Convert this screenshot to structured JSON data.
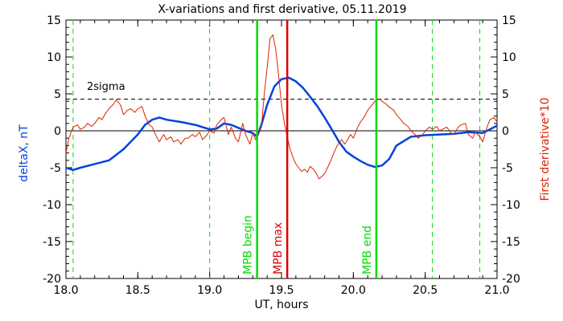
{
  "chart_data": {
    "type": "line",
    "title": "X-variations and first derivative, 05.11.2019",
    "xlabel": "UT, hours",
    "ylabel_left": "deltaX, nT",
    "ylabel_right": "First derivative*10",
    "xlim": [
      18.0,
      21.0
    ],
    "ylim": [
      -20,
      15
    ],
    "x_ticks": [
      "18.0",
      "18.5",
      "19.0",
      "19.5",
      "20.0",
      "20.5",
      "21.0"
    ],
    "y_ticks": [
      "15",
      "10",
      "5",
      "0",
      "-5",
      "-10",
      "-15",
      "-20"
    ],
    "sigma": {
      "label": "2sigma",
      "value": 4.3
    },
    "markers": [
      {
        "label": "MPB begin",
        "x": 19.33,
        "color": "#00dd00"
      },
      {
        "label": "MPB max",
        "x": 19.54,
        "color": "#dd0000"
      },
      {
        "label": "MPB end",
        "x": 20.16,
        "color": "#00dd00"
      }
    ],
    "dashed_lines_x": [
      18.05,
      19.0,
      20.55,
      20.88
    ],
    "series": [
      {
        "name": "deltaX, nT",
        "color": "#0044dd",
        "x": [
          18.0,
          18.05,
          18.1,
          18.2,
          18.3,
          18.4,
          18.5,
          18.55,
          18.6,
          18.65,
          18.7,
          18.8,
          18.9,
          19.0,
          19.05,
          19.1,
          19.15,
          19.2,
          19.25,
          19.3,
          19.33,
          19.36,
          19.4,
          19.45,
          19.5,
          19.55,
          19.6,
          19.65,
          19.7,
          19.75,
          19.8,
          19.85,
          19.9,
          19.95,
          20.0,
          20.05,
          20.1,
          20.15,
          20.2,
          20.25,
          20.3,
          20.4,
          20.5,
          20.6,
          20.7,
          20.8,
          20.9,
          21.0
        ],
        "values": [
          -5.0,
          -5.3,
          -5.0,
          -4.5,
          -4.0,
          -2.5,
          -0.5,
          0.8,
          1.5,
          1.8,
          1.5,
          1.2,
          0.8,
          0.2,
          0.3,
          1.0,
          0.8,
          0.4,
          0.0,
          -0.3,
          -0.8,
          0.8,
          3.5,
          6.0,
          7.0,
          7.2,
          6.7,
          5.8,
          4.6,
          3.3,
          1.8,
          0.2,
          -1.5,
          -2.8,
          -3.5,
          -4.1,
          -4.6,
          -4.9,
          -4.7,
          -3.8,
          -2.0,
          -0.8,
          -0.6,
          -0.5,
          -0.4,
          -0.2,
          -0.3,
          0.7
        ]
      },
      {
        "name": "First derivative*10",
        "color": "#dd2200",
        "x": [
          18.0,
          18.02,
          18.05,
          18.08,
          18.1,
          18.13,
          18.15,
          18.18,
          18.2,
          18.23,
          18.25,
          18.28,
          18.3,
          18.33,
          18.35,
          18.38,
          18.4,
          18.43,
          18.45,
          18.48,
          18.5,
          18.53,
          18.55,
          18.58,
          18.6,
          18.63,
          18.65,
          18.68,
          18.7,
          18.73,
          18.75,
          18.78,
          18.8,
          18.83,
          18.85,
          18.88,
          18.9,
          18.93,
          18.95,
          18.98,
          19.0,
          19.03,
          19.05,
          19.08,
          19.1,
          19.13,
          19.15,
          19.18,
          19.2,
          19.23,
          19.25,
          19.28,
          19.3,
          19.32,
          19.34,
          19.36,
          19.38,
          19.4,
          19.42,
          19.44,
          19.46,
          19.48,
          19.5,
          19.52,
          19.54,
          19.56,
          19.58,
          19.6,
          19.62,
          19.64,
          19.66,
          19.68,
          19.7,
          19.72,
          19.74,
          19.76,
          19.78,
          19.8,
          19.82,
          19.84,
          19.86,
          19.88,
          19.9,
          19.92,
          19.94,
          19.96,
          19.98,
          20.0,
          20.03,
          20.05,
          20.08,
          20.1,
          20.13,
          20.15,
          20.18,
          20.2,
          20.23,
          20.25,
          20.28,
          20.3,
          20.33,
          20.35,
          20.38,
          20.4,
          20.43,
          20.45,
          20.48,
          20.5,
          20.53,
          20.55,
          20.58,
          20.6,
          20.63,
          20.65,
          20.68,
          20.7,
          20.73,
          20.75,
          20.78,
          20.8,
          20.83,
          20.85,
          20.88,
          20.9,
          20.93,
          20.95,
          20.98,
          21.0
        ],
        "values": [
          -3.0,
          -1.0,
          0.5,
          0.8,
          0.2,
          0.5,
          1.0,
          0.6,
          1.0,
          1.8,
          1.5,
          2.5,
          3.0,
          3.6,
          4.2,
          3.5,
          2.2,
          2.8,
          3.0,
          2.5,
          3.0,
          3.3,
          2.0,
          0.8,
          0.5,
          -0.8,
          -1.5,
          -0.5,
          -1.2,
          -0.8,
          -1.5,
          -1.2,
          -1.8,
          -1.0,
          -1.0,
          -0.5,
          -0.8,
          -0.2,
          -1.2,
          -0.6,
          0.0,
          -0.3,
          0.8,
          1.5,
          1.8,
          -0.5,
          0.5,
          -1.0,
          -1.5,
          1.0,
          -0.5,
          -1.8,
          -0.3,
          -1.2,
          -0.5,
          0.5,
          5.0,
          8.5,
          12.5,
          13.0,
          11.0,
          7.5,
          3.5,
          1.0,
          -0.8,
          -2.5,
          -3.6,
          -4.5,
          -5.0,
          -5.5,
          -5.2,
          -5.6,
          -4.8,
          -5.2,
          -5.7,
          -6.5,
          -6.2,
          -5.8,
          -5.0,
          -4.2,
          -3.2,
          -2.3,
          -1.6,
          -1.2,
          -1.8,
          -1.2,
          -0.5,
          -1.0,
          0.5,
          1.2,
          2.0,
          2.8,
          3.5,
          4.0,
          4.3,
          4.0,
          3.6,
          3.2,
          2.8,
          2.2,
          1.5,
          1.0,
          0.6,
          0.0,
          -0.5,
          -1.0,
          -0.6,
          0.0,
          0.5,
          0.2,
          0.6,
          0.0,
          0.3,
          0.5,
          -0.3,
          -0.5,
          0.5,
          0.8,
          1.0,
          -0.5,
          -1.0,
          -0.2,
          -0.8,
          -1.5,
          0.5,
          1.5,
          1.8,
          1.2
        ]
      }
    ]
  }
}
